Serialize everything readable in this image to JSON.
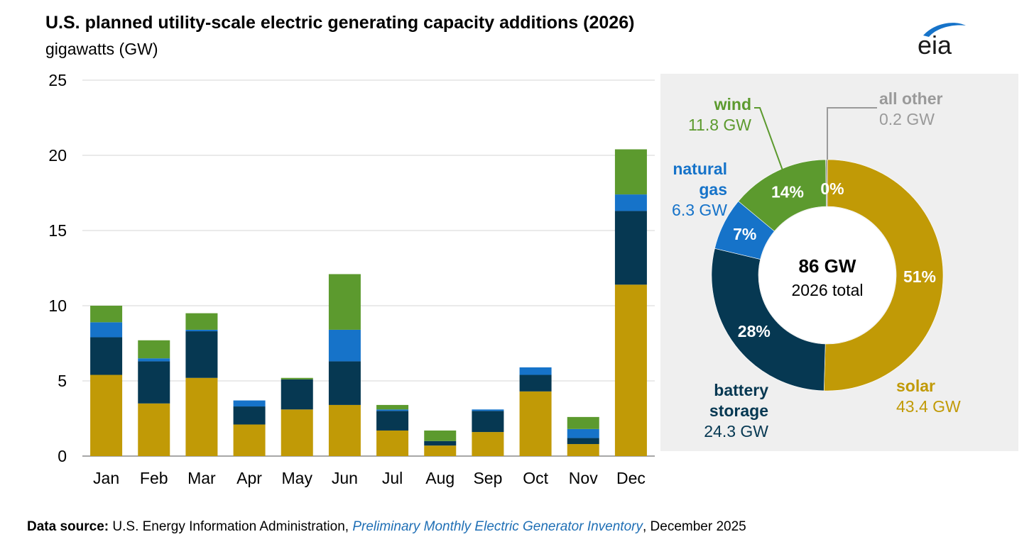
{
  "header": {
    "title": "U.S. planned utility-scale electric generating capacity additions (2026)",
    "subtitle": "gigawatts (GW)",
    "logo_text": "eia"
  },
  "colors": {
    "solar": "#c19a06",
    "battery_storage": "#063852",
    "natural_gas": "#1673c9",
    "wind": "#5c9a2e",
    "all_other": "#9a9a9a",
    "panel_bg": "#efefef"
  },
  "chart_data": [
    {
      "type": "bar",
      "stacked": true,
      "categories": [
        "Jan",
        "Feb",
        "Mar",
        "Apr",
        "May",
        "Jun",
        "Jul",
        "Aug",
        "Sep",
        "Oct",
        "Nov",
        "Dec"
      ],
      "ylim": [
        0,
        25
      ],
      "yticks": [
        0,
        5,
        10,
        15,
        20,
        25
      ],
      "grid": true,
      "series": [
        {
          "key": "solar",
          "values": [
            5.4,
            3.5,
            5.2,
            2.1,
            3.1,
            3.4,
            1.7,
            0.7,
            1.6,
            4.3,
            0.8,
            11.4
          ]
        },
        {
          "key": "battery_storage",
          "values": [
            2.5,
            2.8,
            3.1,
            1.2,
            2.0,
            2.9,
            1.3,
            0.3,
            1.4,
            1.1,
            0.4,
            4.9
          ]
        },
        {
          "key": "natural_gas",
          "values": [
            1.0,
            0.2,
            0.1,
            0.4,
            0.0,
            2.1,
            0.1,
            0.0,
            0.1,
            0.5,
            0.6,
            1.1
          ]
        },
        {
          "key": "wind",
          "values": [
            1.1,
            1.2,
            1.1,
            0.0,
            0.1,
            3.7,
            0.3,
            0.7,
            0.0,
            0.0,
            0.8,
            3.0
          ]
        }
      ]
    },
    {
      "type": "pie",
      "donut": true,
      "center_value": "86 GW",
      "center_label": "2026 total",
      "slices": [
        {
          "key": "solar",
          "name": "solar",
          "value": 43.4,
          "value_label": "43.4 GW",
          "percent_label": "51%"
        },
        {
          "key": "battery_storage",
          "name": "battery storage",
          "value": 24.3,
          "value_label": "24.3 GW",
          "percent_label": "28%"
        },
        {
          "key": "natural_gas",
          "name": "natural gas",
          "value": 6.3,
          "value_label": "6.3 GW",
          "percent_label": "7%"
        },
        {
          "key": "wind",
          "name": "wind",
          "value": 11.8,
          "value_label": "11.8 GW",
          "percent_label": "14%"
        },
        {
          "key": "all_other",
          "name": "all other",
          "value": 0.2,
          "value_label": "0.2 GW",
          "percent_label": "0%"
        }
      ]
    }
  ],
  "legend_labels": {
    "wind": {
      "name": "wind",
      "value": "11.8 GW"
    },
    "all_other": {
      "name": "all other",
      "value": "0.2 GW"
    },
    "natural_gas": {
      "name_line1": "natural",
      "name_line2": "gas",
      "value": "6.3 GW"
    },
    "battery_storage": {
      "name_line1": "battery",
      "name_line2": "storage",
      "value": "24.3 GW"
    },
    "solar": {
      "name": "solar",
      "value": "43.4 GW"
    }
  },
  "footer": {
    "source_label": "Data source:",
    "source_pre": "U.S. Energy Information Administration,",
    "source_link": "Preliminary Monthly Electric Generator Inventory",
    "source_post": ", December 2025"
  }
}
